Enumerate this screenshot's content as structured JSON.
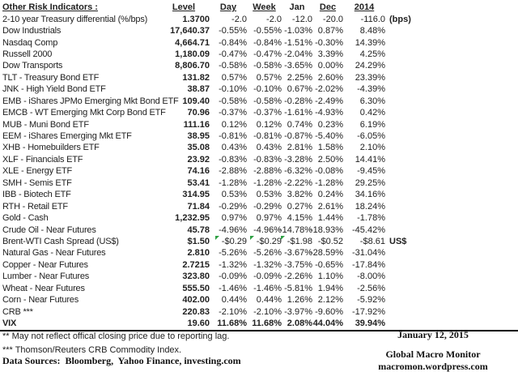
{
  "chart_data": {
    "type": "table",
    "title": "Other Risk Indicators :",
    "columns": [
      {
        "key": "level",
        "label": "Level",
        "underline": true
      },
      {
        "key": "day",
        "label": "Day",
        "underline": true
      },
      {
        "key": "week",
        "label": "Week",
        "underline": true
      },
      {
        "key": "jan",
        "label": "Jan",
        "underline": false
      },
      {
        "key": "dec",
        "label": "Dec",
        "underline": true
      },
      {
        "key": "year2014",
        "label": "2014",
        "underline": true
      }
    ],
    "rows": [
      {
        "name": "2-10 year Treasury differential (%/bps)",
        "level": "1.3700",
        "day": "-2.0",
        "week": "-2.0",
        "jan": "-12.0",
        "dec": "-20.0",
        "year2014": "-116.0",
        "unit": "(bps)"
      },
      {
        "name": "Dow Industrials",
        "level": "17,640.37",
        "day": "-0.55%",
        "week": "-0.55%",
        "jan": "-1.03%",
        "dec": "0.87%",
        "year2014": "8.48%"
      },
      {
        "name": "Nasdaq Comp",
        "level": "4,664.71",
        "day": "-0.84%",
        "week": "-0.84%",
        "jan": "-1.51%",
        "dec": "-0.30%",
        "year2014": "14.39%"
      },
      {
        "name": "Russell 2000",
        "level": "1,180.09",
        "day": "-0.47%",
        "week": "-0.47%",
        "jan": "-2.04%",
        "dec": "3.39%",
        "year2014": "4.25%"
      },
      {
        "name": "Dow Transports",
        "level": "8,806.70",
        "day": "-0.58%",
        "week": "-0.58%",
        "jan": "-3.65%",
        "dec": "0.00%",
        "year2014": "24.29%"
      },
      {
        "name": "TLT - Treasury Bond ETF",
        "level": "131.82",
        "day": "0.57%",
        "week": "0.57%",
        "jan": "2.25%",
        "dec": "2.60%",
        "year2014": "23.39%"
      },
      {
        "name": "JNK - High Yield Bond ETF",
        "level": "38.87",
        "day": "-0.10%",
        "week": "-0.10%",
        "jan": "0.67%",
        "dec": "-2.02%",
        "year2014": "-4.39%"
      },
      {
        "name": "EMB - iShares JPMo Emerging Mkt Bond ETF",
        "level": "109.40",
        "day": "-0.58%",
        "week": "-0.58%",
        "jan": "-0.28%",
        "dec": "-2.49%",
        "year2014": "6.30%"
      },
      {
        "name": "EMCB - WT Emerging Mkt Corp Bond ETF",
        "level": "70.96",
        "day": "-0.37%",
        "week": "-0.37%",
        "jan": "-1.61%",
        "dec": "-4.93%",
        "year2014": "0.42%"
      },
      {
        "name": "MUB - Muni Bond ETF",
        "level": "111.16",
        "day": "0.12%",
        "week": "0.12%",
        "jan": "0.74%",
        "dec": "0.23%",
        "year2014": "6.19%"
      },
      {
        "name": "EEM - iShares Emerging Mkt ETF",
        "level": "38.95",
        "day": "-0.81%",
        "week": "-0.81%",
        "jan": "-0.87%",
        "dec": "-5.40%",
        "year2014": "-6.05%"
      },
      {
        "name": "XHB - Homebuilders ETF",
        "level": "35.08",
        "day": "0.43%",
        "week": "0.43%",
        "jan": "2.81%",
        "dec": "1.58%",
        "year2014": "2.10%"
      },
      {
        "name": "XLF - Financials ETF",
        "level": "23.92",
        "day": "-0.83%",
        "week": "-0.83%",
        "jan": "-3.28%",
        "dec": "2.50%",
        "year2014": "14.41%"
      },
      {
        "name": "XLE - Energy ETF",
        "level": "74.16",
        "day": "-2.88%",
        "week": "-2.88%",
        "jan": "-6.32%",
        "dec": "-0.08%",
        "year2014": "-9.45%"
      },
      {
        "name": "SMH - Semis ETF",
        "level": "53.41",
        "day": "-1.28%",
        "week": "-1.28%",
        "jan": "-2.22%",
        "dec": "-1.28%",
        "year2014": "29.25%"
      },
      {
        "name": "IBB - Biotech ETF",
        "level": "314.95",
        "day": "0.53%",
        "week": "0.53%",
        "jan": "3.82%",
        "dec": "0.24%",
        "year2014": "34.16%"
      },
      {
        "name": "RTH - Retail ETF",
        "level": "71.84",
        "day": "-0.29%",
        "week": "-0.29%",
        "jan": "0.27%",
        "dec": "2.61%",
        "year2014": "18.24%"
      },
      {
        "name": "Gold - Cash",
        "level": "1,232.95",
        "day": "0.97%",
        "week": "0.97%",
        "jan": "4.15%",
        "dec": "1.44%",
        "year2014": "-1.78%"
      },
      {
        "name": "Crude Oil - Near Futures",
        "level": "45.78",
        "day": "-4.96%",
        "week": "-4.96%",
        "jan": "-14.78%",
        "dec": "-18.93%",
        "year2014": "-45.42%"
      },
      {
        "name": "Brent-WTI Cash Spread (US$)",
        "level": "$1.50",
        "day": "-$0.29",
        "week": "-$0.29",
        "jan": "-$1.98",
        "dec": "-$0.52",
        "year2014": "-$8.61",
        "unit": "US$",
        "flags": [
          "day",
          "week",
          "jan"
        ]
      },
      {
        "name": "Natural Gas - Near Futures",
        "level": "2.810",
        "day": "-5.26%",
        "week": "-5.26%",
        "jan": "-3.67%",
        "dec": "-28.59%",
        "year2014": "-31.04%"
      },
      {
        "name": "Copper - Near Futures",
        "level": "2.7215",
        "day": "-1.32%",
        "week": "-1.32%",
        "jan": "-3.75%",
        "dec": "-0.65%",
        "year2014": "-17.84%"
      },
      {
        "name": "Lumber - Near Futures",
        "level": "323.80",
        "day": "-0.09%",
        "week": "-0.09%",
        "jan": "-2.26%",
        "dec": "1.10%",
        "year2014": "-8.00%"
      },
      {
        "name": "Wheat - Near Futures",
        "level": "555.50",
        "day": "-1.46%",
        "week": "-1.46%",
        "jan": "-5.81%",
        "dec": "1.94%",
        "year2014": "-2.56%"
      },
      {
        "name": "Corn - Near Futures",
        "level": "402.00",
        "day": "0.44%",
        "week": "0.44%",
        "jan": "1.26%",
        "dec": "2.12%",
        "year2014": "-5.92%"
      },
      {
        "name": "CRB ***",
        "level": "220.83",
        "day": "-2.10%",
        "week": "-2.10%",
        "jan": "-3.97%",
        "dec": "-9.60%",
        "year2014": "-17.92%"
      },
      {
        "name": "VIX",
        "level": "19.60",
        "day": "11.68%",
        "week": "11.68%",
        "jan": "2.08%",
        "dec": "44.04%",
        "year2014": "39.94%",
        "bold": true
      }
    ],
    "footnotes": [
      "** May not reflect offical closing price due to reporting lag.",
      "*** Thomson/Reuters CRB Commodity Index."
    ],
    "sources_label": "Data Sources:  Bloomberg,  Yahoo Finance, investing.com"
  },
  "footer_right": {
    "date": "January 12, 2015",
    "brand": "Global Macro Monitor",
    "site": "macromon.wordpress.com"
  },
  "colors": {
    "text": "#212121",
    "flag_green": "#2da043",
    "rule": "#000000"
  }
}
